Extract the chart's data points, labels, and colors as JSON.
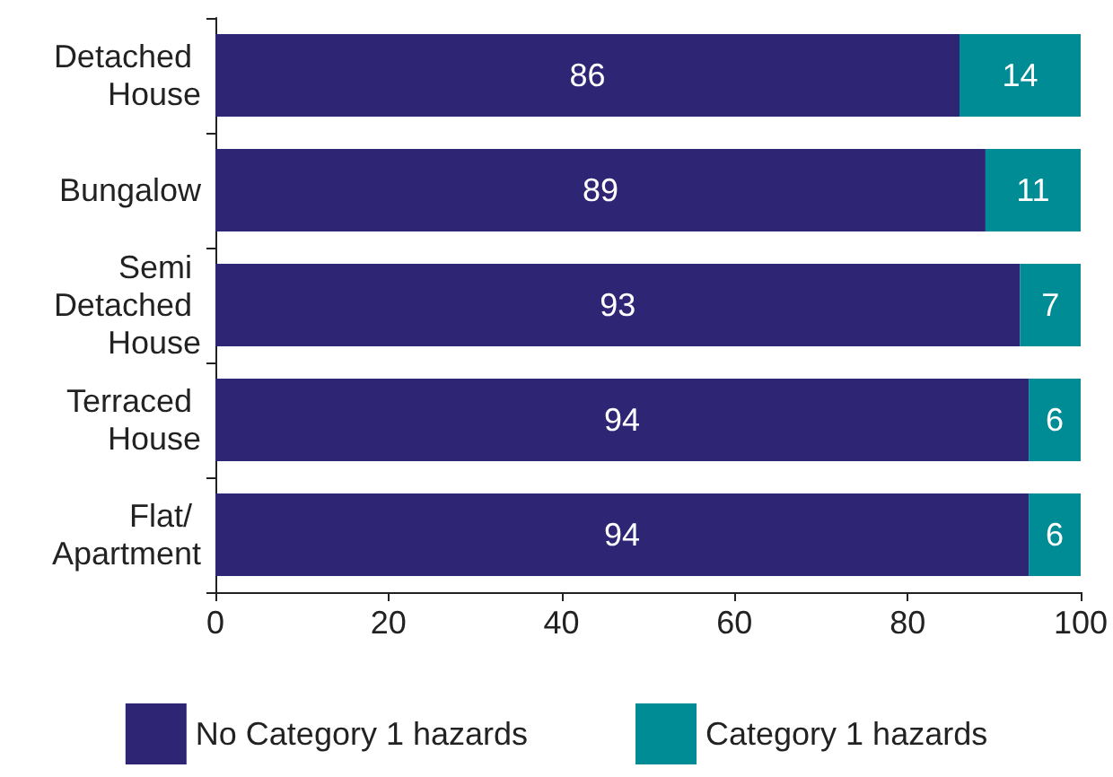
{
  "chart_data": {
    "type": "bar",
    "orientation": "horizontal",
    "stacked": true,
    "categories": [
      "Detached House",
      "Bungalow",
      "Semi Detached House",
      "Terraced House",
      "Flat/ Apartment"
    ],
    "series": [
      {
        "name": "No Category 1 hazards",
        "color": "#2e2575",
        "values": [
          86,
          89,
          93,
          94,
          94
        ]
      },
      {
        "name": "Category 1 hazards",
        "color": "#008c95",
        "values": [
          14,
          11,
          7,
          6,
          6
        ]
      }
    ],
    "xlim": [
      0,
      100
    ],
    "xticks": [
      0,
      20,
      40,
      60,
      80,
      100
    ],
    "data_labels": true,
    "grid": false,
    "legend": "bottom"
  }
}
